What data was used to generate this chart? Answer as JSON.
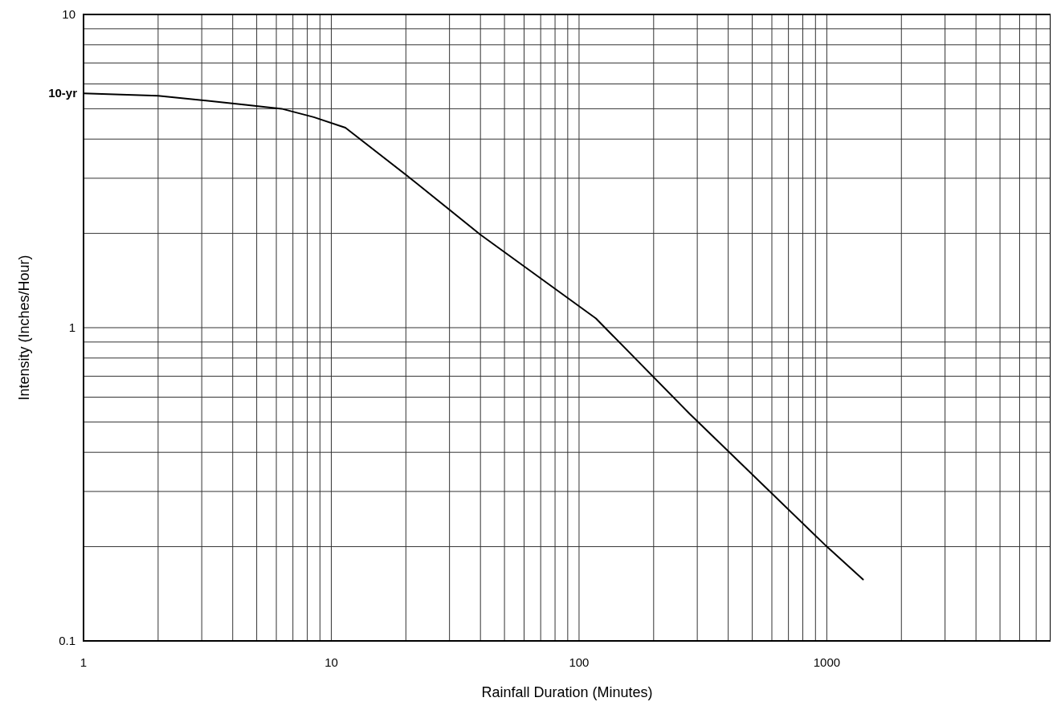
{
  "chart_data": {
    "type": "line",
    "xlabel": "Rainfall Duration (Minutes)",
    "ylabel": "Intensity (Inches/Hour)",
    "log": "xy",
    "grid": true,
    "xlim": [
      1,
      8000
    ],
    "ylim": [
      0.1,
      10
    ],
    "xticks": [
      1,
      {
        "value": 2,
        "label": null
      },
      {
        "value": 3,
        "label": null
      },
      {
        "value": 4,
        "label": null
      },
      {
        "value": 5,
        "label": null
      },
      {
        "value": 6,
        "label": null
      },
      {
        "value": 7,
        "label": null
      },
      {
        "value": 8,
        "label": null
      },
      {
        "value": 9,
        "label": null
      },
      10,
      {
        "value": 20,
        "label": null
      },
      {
        "value": 30,
        "label": null
      },
      {
        "value": 40,
        "label": null
      },
      {
        "value": 50,
        "label": null
      },
      {
        "value": 60,
        "label": null
      },
      {
        "value": 70,
        "label": null
      },
      {
        "value": 80,
        "label": null
      },
      {
        "value": 90,
        "label": null
      },
      100,
      {
        "value": 200,
        "label": null
      },
      {
        "value": 300,
        "label": null
      },
      {
        "value": 400,
        "label": null
      },
      {
        "value": 500,
        "label": null
      },
      {
        "value": 600,
        "label": null
      },
      {
        "value": 700,
        "label": null
      },
      {
        "value": 800,
        "label": null
      },
      {
        "value": 900,
        "label": null
      },
      1000,
      {
        "value": 2000,
        "label": null
      },
      {
        "value": 3000,
        "label": null
      },
      {
        "value": 4000,
        "label": null
      },
      {
        "value": 5000,
        "label": null
      },
      {
        "value": 6000,
        "label": null
      },
      {
        "value": 7000,
        "label": null
      }
    ],
    "yticks": [
      0.1,
      {
        "value": 0.2,
        "label": null
      },
      {
        "value": 0.3,
        "label": null
      },
      {
        "value": 0.4,
        "label": null
      },
      {
        "value": 0.5,
        "label": null
      },
      {
        "value": 0.6,
        "label": null
      },
      {
        "value": 0.7,
        "label": null
      },
      {
        "value": 0.8,
        "label": null
      },
      {
        "value": 0.9,
        "label": null
      },
      1,
      {
        "value": 2,
        "label": null
      },
      {
        "value": 3,
        "label": null
      },
      {
        "value": 4,
        "label": null
      },
      {
        "value": 5,
        "label": null
      },
      {
        "value": 6,
        "label": null
      },
      {
        "value": 7,
        "label": null
      },
      {
        "value": 8,
        "label": null
      },
      {
        "value": 9,
        "label": null
      },
      10
    ],
    "series": [
      {
        "name": "10-yr",
        "color": "#000000",
        "x": [
          1,
          2,
          4.5,
          6.3,
          8.5,
          11.4,
          22,
          40,
          117,
          280,
          1000,
          1400
        ],
        "values": [
          5.6,
          5.5,
          5.15,
          5,
          4.7,
          4.35,
          2.9,
          1.98,
          1.07,
          0.53,
          0.2,
          0.157
        ]
      }
    ]
  }
}
